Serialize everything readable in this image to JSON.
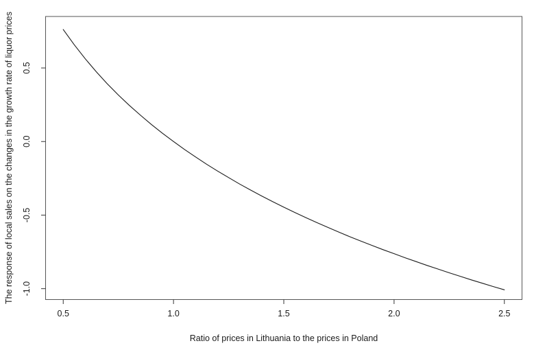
{
  "figure": {
    "background": "#ffffff"
  },
  "chart_data": {
    "type": "line",
    "title": "",
    "xlabel": "Ratio of prices in Lithuania to the prices in Poland",
    "ylabel": "The response of local sales on the changes in the growth rate of liquor prices",
    "x": [
      0.5,
      0.55,
      0.6,
      0.65,
      0.7,
      0.75,
      0.8,
      0.85,
      0.9,
      0.95,
      1.0,
      1.05,
      1.1,
      1.15,
      1.2,
      1.25,
      1.3,
      1.35,
      1.4,
      1.45,
      1.5,
      1.55,
      1.6,
      1.65,
      1.7,
      1.75,
      1.8,
      1.85,
      1.9,
      1.95,
      2.0,
      2.05,
      2.1,
      2.15,
      2.2,
      2.25,
      2.3,
      2.35,
      2.4,
      2.45,
      2.5
    ],
    "y": [
      0.762,
      0.658,
      0.562,
      0.474,
      0.392,
      0.316,
      0.245,
      0.179,
      0.116,
      0.056,
      0.0,
      -0.054,
      -0.105,
      -0.154,
      -0.201,
      -0.245,
      -0.289,
      -0.33,
      -0.37,
      -0.409,
      -0.446,
      -0.482,
      -0.517,
      -0.551,
      -0.584,
      -0.616,
      -0.647,
      -0.677,
      -0.706,
      -0.735,
      -0.762,
      -0.79,
      -0.816,
      -0.842,
      -0.867,
      -0.892,
      -0.916,
      -0.94,
      -0.963,
      -0.986,
      -1.008
    ],
    "xlim": [
      0.42,
      2.58
    ],
    "ylim": [
      -1.074,
      0.85
    ],
    "xticks": {
      "values": [
        0.5,
        1.0,
        1.5,
        2.0,
        2.5
      ],
      "labels": [
        "0.5",
        "1.0",
        "1.5",
        "2.0",
        "2.5"
      ]
    },
    "yticks": {
      "values": [
        -1.0,
        -0.5,
        0.0,
        0.5
      ],
      "labels": [
        "-1.0",
        "-0.5",
        "0.0",
        "0.5"
      ]
    },
    "grid": false,
    "legend": null,
    "line_color": "#1a1a1a",
    "frame_color": "#555555",
    "tick_color": "#333333",
    "text_color": "#1a1a1a"
  }
}
